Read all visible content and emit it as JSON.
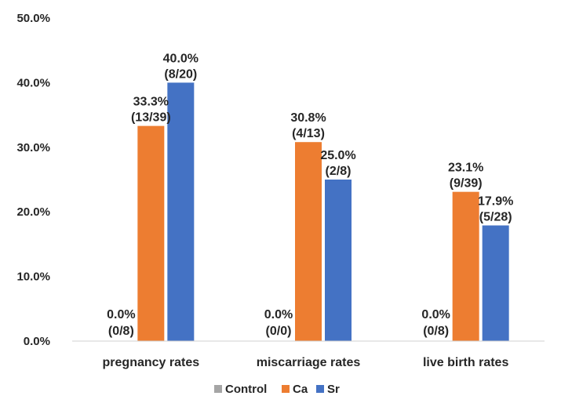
{
  "chart_data": {
    "type": "bar",
    "categories": [
      "pregnancy rates",
      "miscarriage rates",
      "live birth rates"
    ],
    "series": [
      {
        "name": "Control",
        "color": "#a5a5a5",
        "values": [
          0.0,
          0.0,
          0.0
        ],
        "labels": [
          [
            "0.0%",
            "(0/8)"
          ],
          [
            "0.0%",
            "(0/0)"
          ],
          [
            "0.0%",
            "(0/8)"
          ]
        ]
      },
      {
        "name": "Ca",
        "color": "#ed7d31",
        "values": [
          33.3,
          30.8,
          23.1
        ],
        "labels": [
          [
            "33.3%",
            "(13/39)"
          ],
          [
            "30.8%",
            "(4/13)"
          ],
          [
            "23.1%",
            "(9/39)"
          ]
        ]
      },
      {
        "name": "Sr",
        "color": "#4472c4",
        "values": [
          40.0,
          25.0,
          17.9
        ],
        "labels": [
          [
            "40.0%",
            "(8/20)"
          ],
          [
            "25.0%",
            "(2/8)"
          ],
          [
            "17.9%",
            "(5/28)"
          ]
        ]
      }
    ],
    "ylim": [
      0,
      50
    ],
    "yticks": [
      "0.0%",
      "10.0%",
      "20.0%",
      "30.0%",
      "40.0%",
      "50.0%"
    ],
    "grid": false,
    "legend": "bottom"
  }
}
